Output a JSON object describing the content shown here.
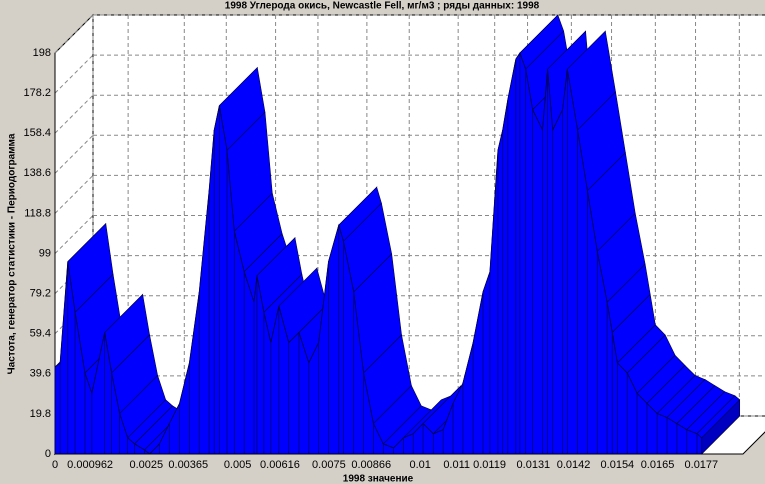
{
  "chart_data": {
    "type": "area3d",
    "title": "1998 Углерода окись, Newcastle Fell,  мг/м3 ; ряды данных: 1998",
    "x_label": "1998  значение",
    "y_label": "Частота, генератор статистики - Периодограмма",
    "x": [
      0,
      0.00014,
      0.00035,
      0.00055,
      0.00082,
      0.00101,
      0.00136,
      0.00155,
      0.00177,
      0.00199,
      0.00218,
      0.00245,
      0.00259,
      0.00286,
      0.00313,
      0.00341,
      0.00368,
      0.00395,
      0.00422,
      0.00436,
      0.0045,
      0.00471,
      0.00491,
      0.00518,
      0.00545,
      0.00553,
      0.00572,
      0.00591,
      0.00613,
      0.0064,
      0.00668,
      0.00695,
      0.00722,
      0.00749,
      0.00777,
      0.0079,
      0.00818,
      0.00845,
      0.00872,
      0.00899,
      0.00927,
      0.00954,
      0.00981,
      0.01008,
      0.01036,
      0.01063,
      0.0109,
      0.01117,
      0.01145,
      0.01172,
      0.01191,
      0.01213,
      0.01226,
      0.0124,
      0.01262,
      0.01273,
      0.01289,
      0.01308,
      0.01335,
      0.01349,
      0.01363,
      0.0139,
      0.01403,
      0.01431,
      0.01458,
      0.01485,
      0.01512,
      0.01526,
      0.0154,
      0.01567,
      0.01594,
      0.01621,
      0.01649,
      0.01676,
      0.01703,
      0.0173,
      0.01758,
      0.01771
    ],
    "series": [
      {
        "name": "1998",
        "color": "#0000ff",
        "values": [
          43,
          45,
          95,
          70,
          40,
          30,
          60,
          40,
          20,
          8,
          5,
          2,
          0,
          5,
          15,
          25,
          45,
          80,
          130,
          160,
          172,
          150,
          110,
          90,
          75,
          88,
          70,
          55,
          73,
          55,
          60,
          45,
          55,
          95,
          113,
          105,
          80,
          40,
          15,
          5,
          3,
          8,
          10,
          15,
          10,
          12,
          25,
          35,
          55,
          80,
          90,
          150,
          160,
          175,
          195,
          198,
          190,
          170,
          160,
          190,
          160,
          170,
          190,
          160,
          130,
          100,
          75,
          60,
          45,
          40,
          30,
          25,
          20,
          18,
          15,
          12,
          10,
          8
        ]
      }
    ],
    "xlim": [
      0,
      0.0178
    ],
    "xticks": [
      0,
      0.000962,
      0.0025,
      0.00365,
      0.005,
      0.00616,
      0.0075,
      0.00866,
      0.01,
      0.011,
      0.0119,
      0.0131,
      0.0142,
      0.0154,
      0.0165,
      0.0177
    ],
    "ylim": [
      0,
      198
    ],
    "yticks": [
      0,
      19.8,
      39.6,
      59.4,
      79.2,
      99,
      118.8,
      138.6,
      158.4,
      178.2,
      198
    ],
    "grid": true
  }
}
